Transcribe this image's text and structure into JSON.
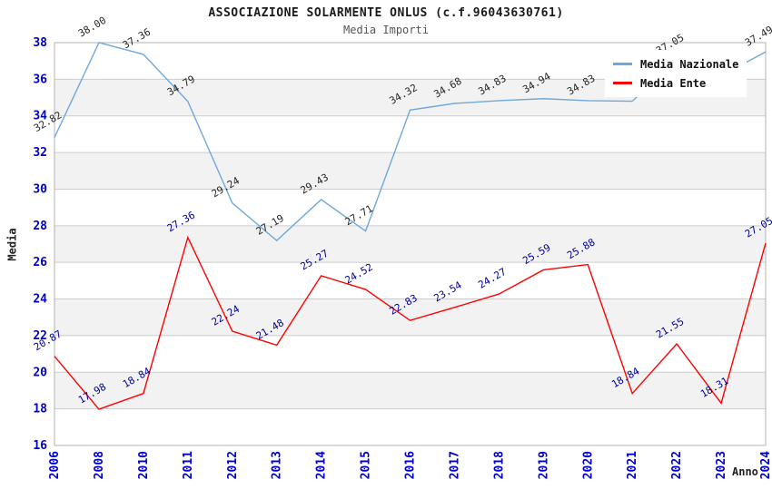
{
  "header": {
    "title": "ASSOCIAZIONE SOLARMENTE ONLUS (c.f.96043630761)",
    "subtitle": "Media Importi"
  },
  "axes": {
    "y_title": "Media",
    "x_title": "Anno",
    "y_ticks": [
      16,
      18,
      20,
      22,
      24,
      26,
      28,
      30,
      32,
      34,
      36,
      38
    ],
    "tick_label_color": "#0000cc"
  },
  "legend": {
    "items": [
      {
        "label": "Media Nazionale",
        "color": "#6fa8dc"
      },
      {
        "label": "Media Ente",
        "color": "#ff0000"
      }
    ]
  },
  "style": {
    "band_color": "#f2f2f2",
    "grid_color": "#cccccc",
    "border_color": "#b3b3b3",
    "background": "#ffffff"
  },
  "chart_data": {
    "type": "line",
    "title": "ASSOCIAZIONE SOLARMENTE ONLUS (c.f.96043630761)",
    "subtitle": "Media Importi",
    "xlabel": "Anno",
    "ylabel": "Media",
    "ylim": [
      16,
      38
    ],
    "ytick_step": 2,
    "grid": "horizontal-bands",
    "legend_position": "upper-right",
    "categories": [
      "2006",
      "2008",
      "2010",
      "2011",
      "2012",
      "2013",
      "2014",
      "2015",
      "2016",
      "2017",
      "2018",
      "2019",
      "2020",
      "2021",
      "2022",
      "2023",
      "2024"
    ],
    "series": [
      {
        "name": "Media Nazionale",
        "color": "#6fa8dc",
        "label_color": "#262626",
        "values": [
          32.82,
          38.0,
          37.36,
          34.79,
          29.24,
          27.19,
          29.43,
          27.71,
          34.32,
          34.68,
          34.83,
          34.94,
          34.83,
          34.8,
          37.05,
          36.2,
          37.49
        ]
      },
      {
        "name": "Media Ente",
        "color": "#ff0000",
        "label_color": "#000099",
        "values": [
          20.87,
          17.98,
          18.84,
          27.36,
          22.24,
          21.48,
          25.27,
          24.52,
          22.83,
          23.54,
          24.27,
          25.59,
          25.88,
          18.84,
          21.55,
          18.31,
          27.05
        ]
      }
    ],
    "estimated_points": [
      {
        "series": "Media Nazionale",
        "category": "2021",
        "reason": "label hidden behind legend"
      },
      {
        "series": "Media Nazionale",
        "category": "2023",
        "reason": "label hidden behind legend"
      }
    ]
  }
}
